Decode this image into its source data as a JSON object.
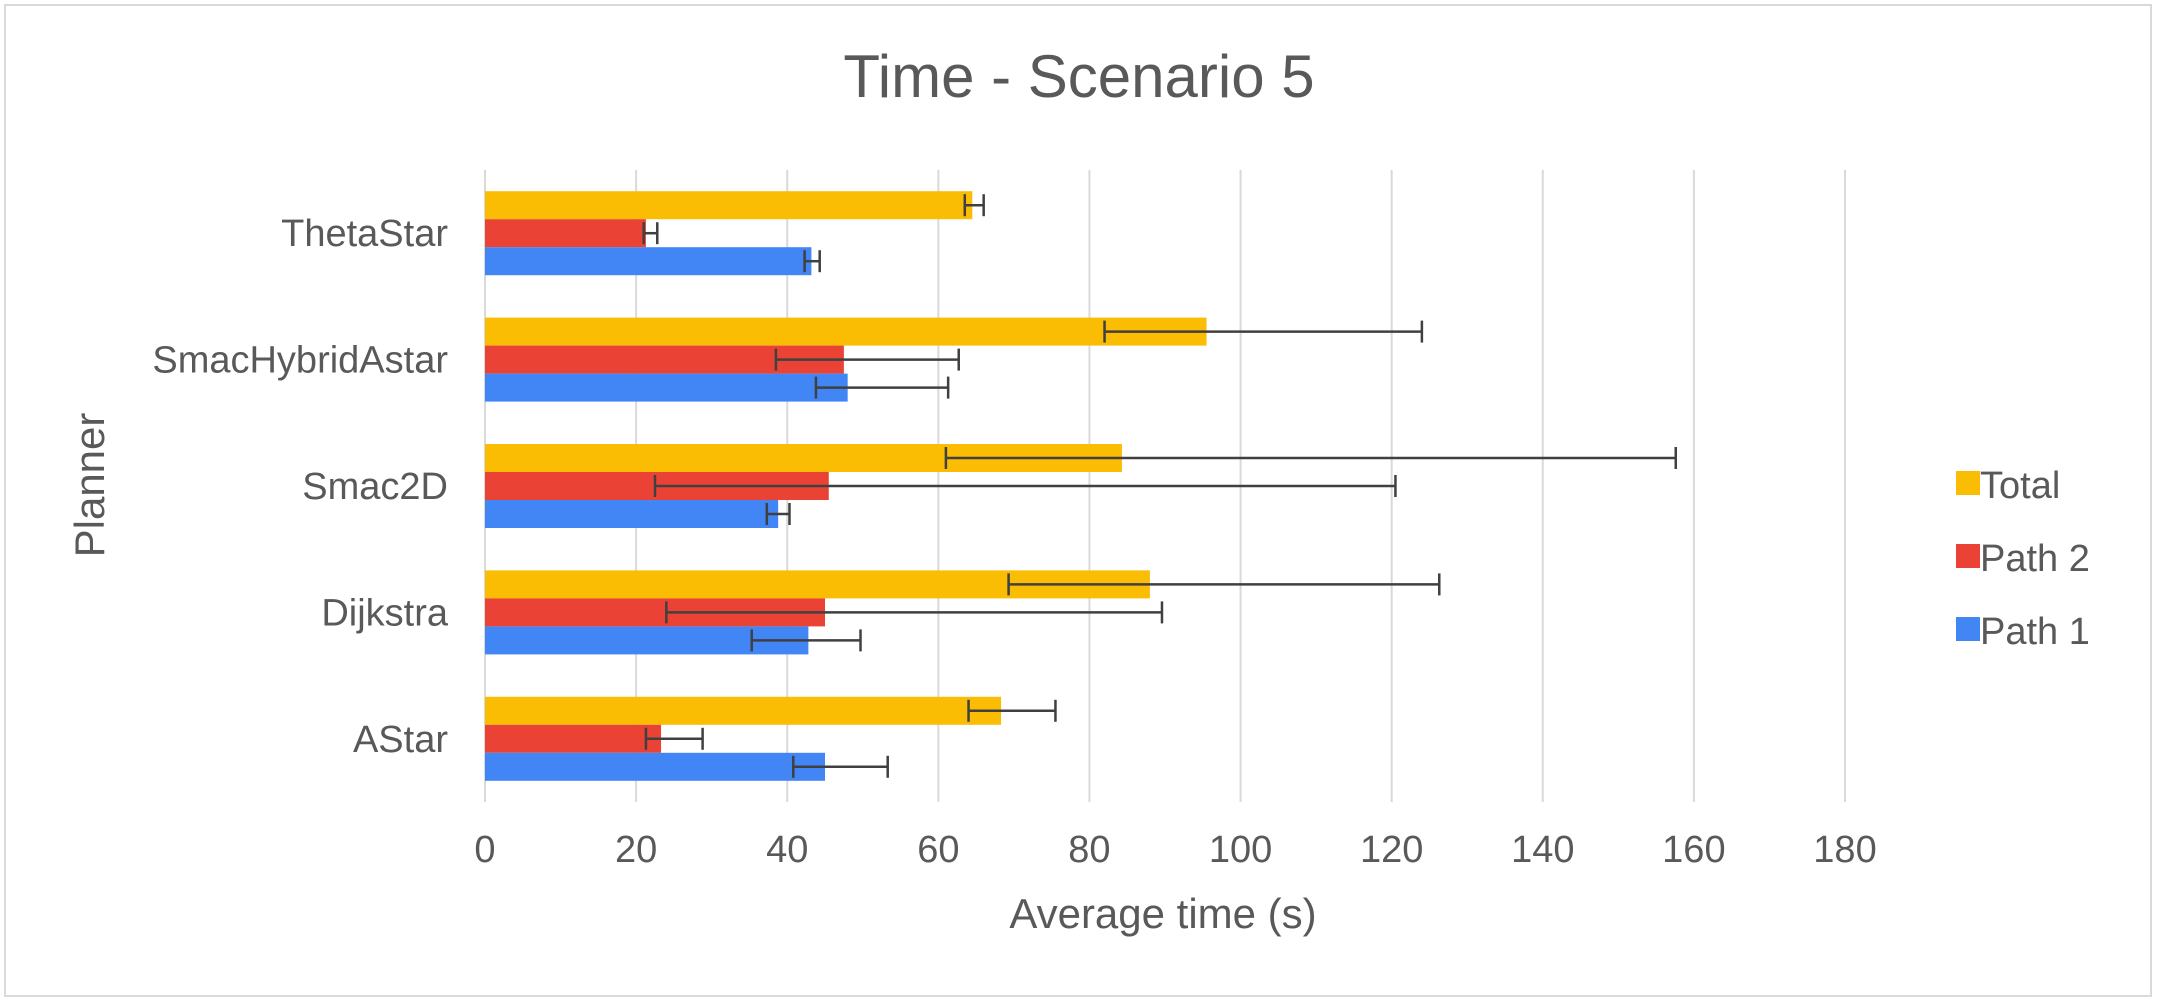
{
  "chart_data": {
    "type": "bar",
    "orientation": "horizontal",
    "title": "Time - Scenario 5",
    "xlabel": "Average time (s)",
    "ylabel": "Planner",
    "xlim": [
      0,
      180
    ],
    "xticks": [
      0,
      20,
      40,
      60,
      80,
      100,
      120,
      140,
      160,
      180
    ],
    "grid": true,
    "legend_position": "right",
    "categories": [
      "ThetaStar",
      "SmacHybridAstar",
      "Smac2D",
      "Dijkstra",
      "AStar"
    ],
    "series": [
      {
        "name": "Total",
        "color": "#fbbc04",
        "values": [
          64.5,
          95.5,
          84.3,
          88.0,
          68.3
        ],
        "error_low": [
          63.5,
          82.0,
          61.0,
          69.3,
          64.0
        ],
        "error_high": [
          66.0,
          124.0,
          157.6,
          126.3,
          75.5
        ]
      },
      {
        "name": "Path 2",
        "color": "#ea4335",
        "values": [
          21.3,
          47.5,
          45.5,
          45.0,
          23.3
        ],
        "error_low": [
          21.0,
          38.5,
          22.5,
          24.0,
          21.3
        ],
        "error_high": [
          22.8,
          62.7,
          120.5,
          89.6,
          28.8
        ]
      },
      {
        "name": "Path 1",
        "color": "#4285f4",
        "values": [
          43.2,
          48.0,
          38.8,
          42.8,
          45.0
        ],
        "error_low": [
          42.3,
          43.8,
          37.3,
          35.3,
          40.8
        ],
        "error_high": [
          44.3,
          61.3,
          40.3,
          49.7,
          53.3
        ]
      }
    ],
    "legend_order": [
      "Total",
      "Path 2",
      "Path 1"
    ]
  }
}
